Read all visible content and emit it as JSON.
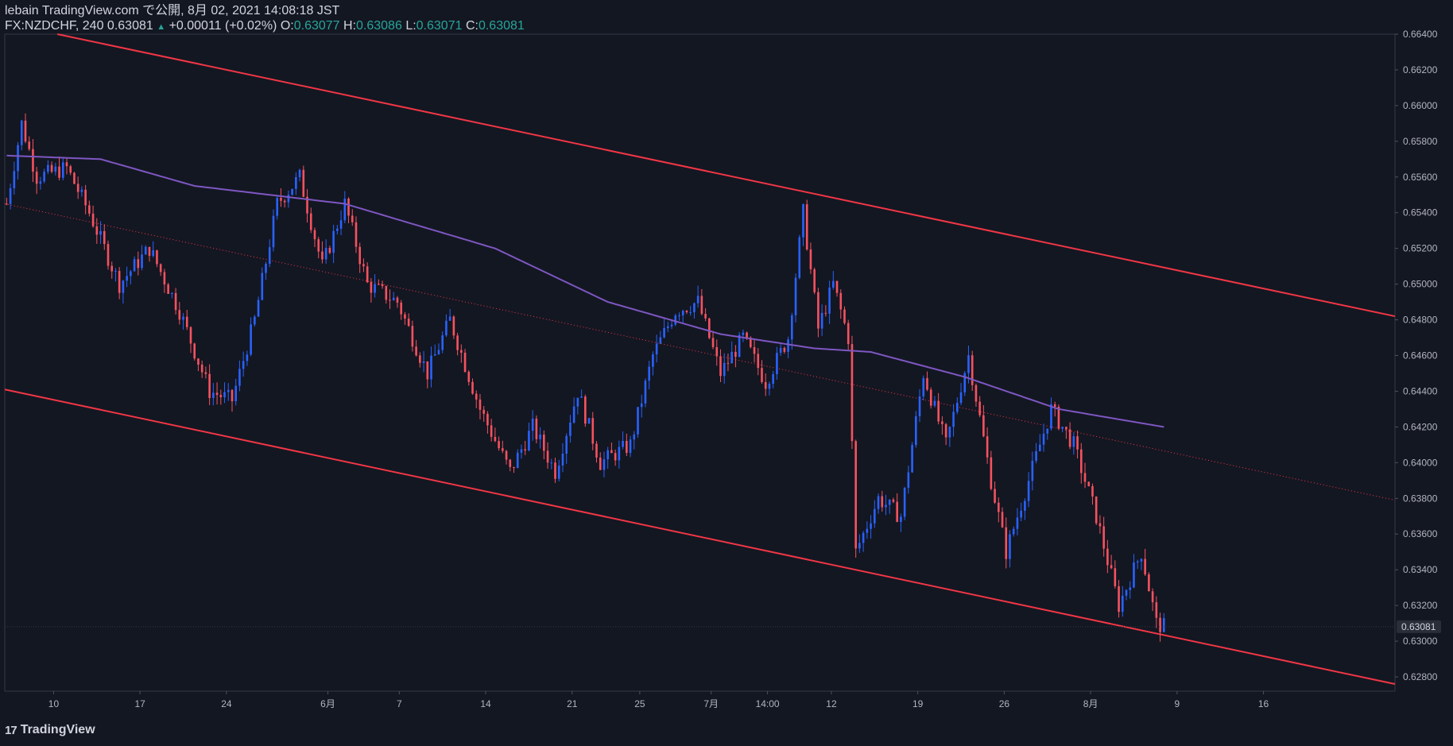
{
  "header": {
    "line1": "lebain TradingView.com で公開, 8月 02, 2021 14:08:18 JST",
    "symbol": "FX:NZDCHF, 240",
    "last": "0.63081",
    "change": "+0.00011 (+0.02%)",
    "o_label": "O:",
    "o": "0.63077",
    "h_label": "H:",
    "h": "0.63086",
    "l_label": "L:",
    "l": "0.63071",
    "c_label": "C:",
    "c": "0.63081"
  },
  "footer": {
    "brand": "TradingView",
    "logo_mark": "17"
  },
  "colors": {
    "background": "#131722",
    "grid": "#1e222d",
    "text": "#b2b5be",
    "up": "#2962ff",
    "down": "#f7525f",
    "channel": "#f23645",
    "ma": "#7e57c2",
    "price_tag_bg": "#2a2e39"
  },
  "chart_data": {
    "type": "candlestick",
    "symbol": "FX:NZDCHF",
    "timeframe": "240",
    "ylim": [
      0.6272,
      0.664
    ],
    "y_ticks": [
      "0.66400",
      "0.66200",
      "0.66000",
      "0.65800",
      "0.65600",
      "0.65400",
      "0.65200",
      "0.65000",
      "0.64800",
      "0.64600",
      "0.64400",
      "0.64200",
      "0.64000",
      "0.63800",
      "0.63600",
      "0.63400",
      "0.63200",
      "0.63000",
      "0.62800"
    ],
    "x_ticks": [
      "10",
      "17",
      "24",
      "6月",
      "7",
      "14",
      "21",
      "25",
      "7月",
      "14:00",
      "12",
      "19",
      "26",
      "8月",
      "9",
      "16"
    ],
    "current_price_label": "0.63081",
    "ohlc_path_keypoints": [
      {
        "bar": 0,
        "close": 0.6545
      },
      {
        "bar": 4,
        "close": 0.659
      },
      {
        "bar": 8,
        "close": 0.656
      },
      {
        "bar": 16,
        "close": 0.6565
      },
      {
        "bar": 22,
        "close": 0.654
      },
      {
        "bar": 30,
        "close": 0.65
      },
      {
        "bar": 38,
        "close": 0.652
      },
      {
        "bar": 46,
        "close": 0.6485
      },
      {
        "bar": 54,
        "close": 0.644
      },
      {
        "bar": 60,
        "close": 0.6435
      },
      {
        "bar": 66,
        "close": 0.648
      },
      {
        "bar": 72,
        "close": 0.6545
      },
      {
        "bar": 78,
        "close": 0.656
      },
      {
        "bar": 84,
        "close": 0.651
      },
      {
        "bar": 90,
        "close": 0.6545
      },
      {
        "bar": 96,
        "close": 0.65
      },
      {
        "bar": 104,
        "close": 0.649
      },
      {
        "bar": 112,
        "close": 0.645
      },
      {
        "bar": 118,
        "close": 0.648
      },
      {
        "bar": 126,
        "close": 0.643
      },
      {
        "bar": 134,
        "close": 0.6395
      },
      {
        "bar": 140,
        "close": 0.642
      },
      {
        "bar": 146,
        "close": 0.6395
      },
      {
        "bar": 152,
        "close": 0.644
      },
      {
        "bar": 158,
        "close": 0.64
      },
      {
        "bar": 166,
        "close": 0.641
      },
      {
        "bar": 172,
        "close": 0.646
      },
      {
        "bar": 178,
        "close": 0.6485
      },
      {
        "bar": 184,
        "close": 0.649
      },
      {
        "bar": 190,
        "close": 0.645
      },
      {
        "bar": 196,
        "close": 0.647
      },
      {
        "bar": 202,
        "close": 0.6445
      },
      {
        "bar": 208,
        "close": 0.647
      },
      {
        "bar": 212,
        "close": 0.654
      },
      {
        "bar": 216,
        "close": 0.6475
      },
      {
        "bar": 220,
        "close": 0.65
      },
      {
        "bar": 224,
        "close": 0.647
      },
      {
        "bar": 226,
        "close": 0.635
      },
      {
        "bar": 232,
        "close": 0.638
      },
      {
        "bar": 238,
        "close": 0.637
      },
      {
        "bar": 244,
        "close": 0.645
      },
      {
        "bar": 250,
        "close": 0.641
      },
      {
        "bar": 256,
        "close": 0.646
      },
      {
        "bar": 262,
        "close": 0.639
      },
      {
        "bar": 266,
        "close": 0.635
      },
      {
        "bar": 272,
        "close": 0.639
      },
      {
        "bar": 278,
        "close": 0.643
      },
      {
        "bar": 284,
        "close": 0.641
      },
      {
        "bar": 290,
        "close": 0.637
      },
      {
        "bar": 296,
        "close": 0.632
      },
      {
        "bar": 302,
        "close": 0.635
      },
      {
        "bar": 306,
        "close": 0.631
      },
      {
        "bar": 308,
        "close": 0.63081
      }
    ],
    "moving_average_keypoints": [
      {
        "bar": 0,
        "value": 0.6572
      },
      {
        "bar": 25,
        "value": 0.657
      },
      {
        "bar": 50,
        "value": 0.6555
      },
      {
        "bar": 90,
        "value": 0.6545
      },
      {
        "bar": 130,
        "value": 0.652
      },
      {
        "bar": 160,
        "value": 0.649
      },
      {
        "bar": 190,
        "value": 0.6472
      },
      {
        "bar": 215,
        "value": 0.6464
      },
      {
        "bar": 230,
        "value": 0.6462
      },
      {
        "bar": 255,
        "value": 0.6448
      },
      {
        "bar": 280,
        "value": 0.643
      },
      {
        "bar": 308,
        "value": 0.642
      }
    ],
    "channel": {
      "upper": [
        {
          "bar": 14,
          "price": 0.664
        },
        {
          "bar": 370,
          "price": 0.6482
        }
      ],
      "lower": [
        {
          "bar": 0,
          "price": 0.6441
        },
        {
          "bar": 370,
          "price": 0.6276
        }
      ],
      "mid_dotted": [
        {
          "bar": 0,
          "price": 0.6545
        },
        {
          "bar": 370,
          "price": 0.6379
        }
      ]
    },
    "total_bars_axis": 370,
    "visible_bars": 309
  }
}
